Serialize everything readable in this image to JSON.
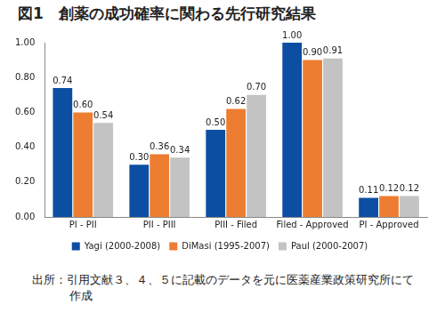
{
  "chart_data": {
    "type": "bar",
    "title": "図1　創薬の成功確率に関わる先行研究結果",
    "subtitle": "出所：引用文献３、４、５に記載のデータを元に医薬産業政策研究所にて作成",
    "categories": [
      "PI - PII",
      "PII - PIII",
      "PIII - Filed",
      "Filed - Approved",
      "PI - Approved"
    ],
    "series": [
      {
        "name": "Yagi (2000-2008)",
        "color": "#0b4ea2",
        "values": [
          0.74,
          0.3,
          0.5,
          1.0,
          0.11
        ],
        "value_labels": [
          "0.74",
          "0.30",
          "0.50",
          "1.00",
          "0.11"
        ]
      },
      {
        "name": "DiMasi (1995-2007)",
        "color": "#ed7d31",
        "values": [
          0.6,
          0.36,
          0.62,
          0.9,
          0.12
        ],
        "value_labels": [
          "0.60",
          "0.36",
          "0.62",
          "0.90",
          "0.12"
        ]
      },
      {
        "name": "Paul (2000-2007)",
        "color": "#c3c3c3",
        "values": [
          0.54,
          0.34,
          0.7,
          0.91,
          0.12
        ],
        "value_labels": [
          "0.54",
          "0.34",
          "0.70",
          "0.91",
          "0.12"
        ]
      }
    ],
    "ylim": [
      0,
      1
    ],
    "yticks": [
      {
        "value": 0,
        "label": "0.00"
      },
      {
        "value": 0.2,
        "label": "0.20"
      },
      {
        "value": 0.4,
        "label": "0.40"
      },
      {
        "value": 0.6,
        "label": "0.60"
      },
      {
        "value": 0.8,
        "label": "0.80"
      },
      {
        "value": 1,
        "label": "1.00"
      }
    ],
    "grid": false,
    "legend": "bottom",
    "data_labels": true
  }
}
